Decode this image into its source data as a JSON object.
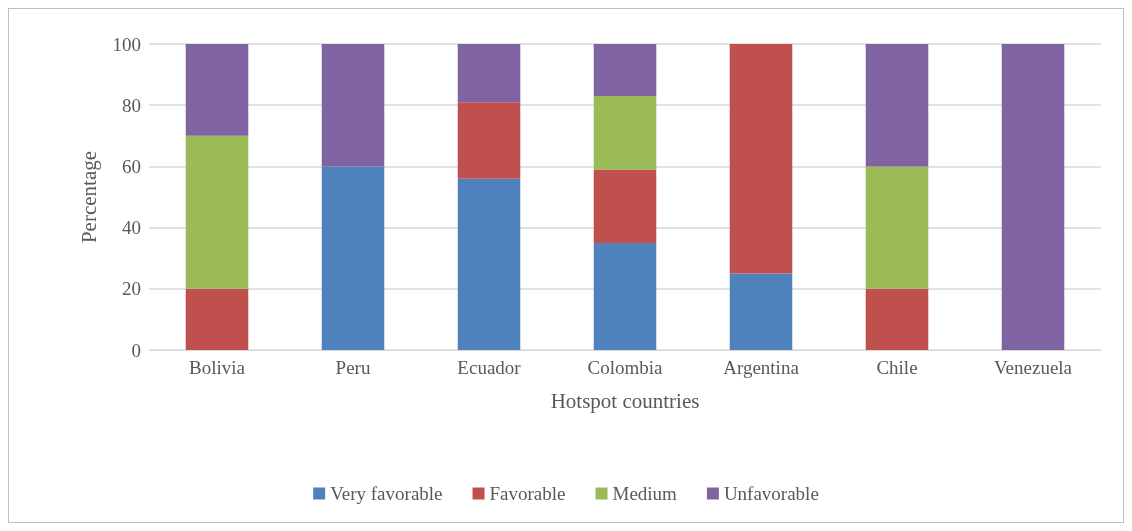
{
  "chart_data": {
    "type": "bar",
    "stacked": true,
    "xlabel": "Hotspot countries",
    "ylabel": "Percentage",
    "categories": [
      "Bolivia",
      "Peru",
      "Ecuador",
      "Colombia",
      "Argentina",
      "Chile",
      "Venezuela"
    ],
    "series": [
      {
        "name": "Very favorable",
        "color": "#4f81bd",
        "values": [
          0,
          60,
          56,
          35,
          25,
          0,
          0
        ]
      },
      {
        "name": "Favorable",
        "color": "#c0504d",
        "values": [
          20,
          0,
          25,
          24,
          75,
          20,
          0
        ]
      },
      {
        "name": "Medium",
        "color": "#9bbb59",
        "values": [
          50,
          0,
          0,
          24,
          0,
          40,
          0
        ]
      },
      {
        "name": "Unfavorable",
        "color": "#8064a2",
        "values": [
          30,
          40,
          19,
          17,
          0,
          40,
          100
        ]
      }
    ],
    "ylim": [
      0,
      100
    ],
    "yticks": [
      0,
      20,
      40,
      60,
      80,
      100
    ],
    "grid": "y",
    "legend": "bottom"
  }
}
